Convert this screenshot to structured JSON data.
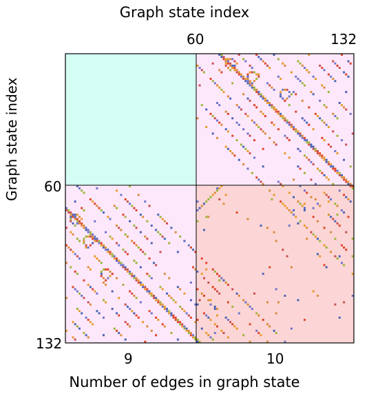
{
  "top_axis": {
    "title": "Graph state index",
    "tick_labels": [
      "60",
      "132"
    ]
  },
  "left_axis": {
    "title": "Graph state index",
    "tick_labels": [
      "60",
      "132"
    ]
  },
  "bottom_axis": {
    "title": "Number of edges in graph state",
    "tick_labels": [
      "9",
      "10"
    ]
  },
  "colors": {
    "block_top_left": "#d4fdf4",
    "block_off_diagonal": "#fde8fb",
    "block_bottom_right": "#fcd6d6",
    "border": "#000000",
    "dot_palette": [
      "#e0452b",
      "#e89a2a",
      "#6f74c9",
      "#9bb53b",
      "#4b63b5",
      "#d98c3a",
      "#c94f4f"
    ]
  }
}
